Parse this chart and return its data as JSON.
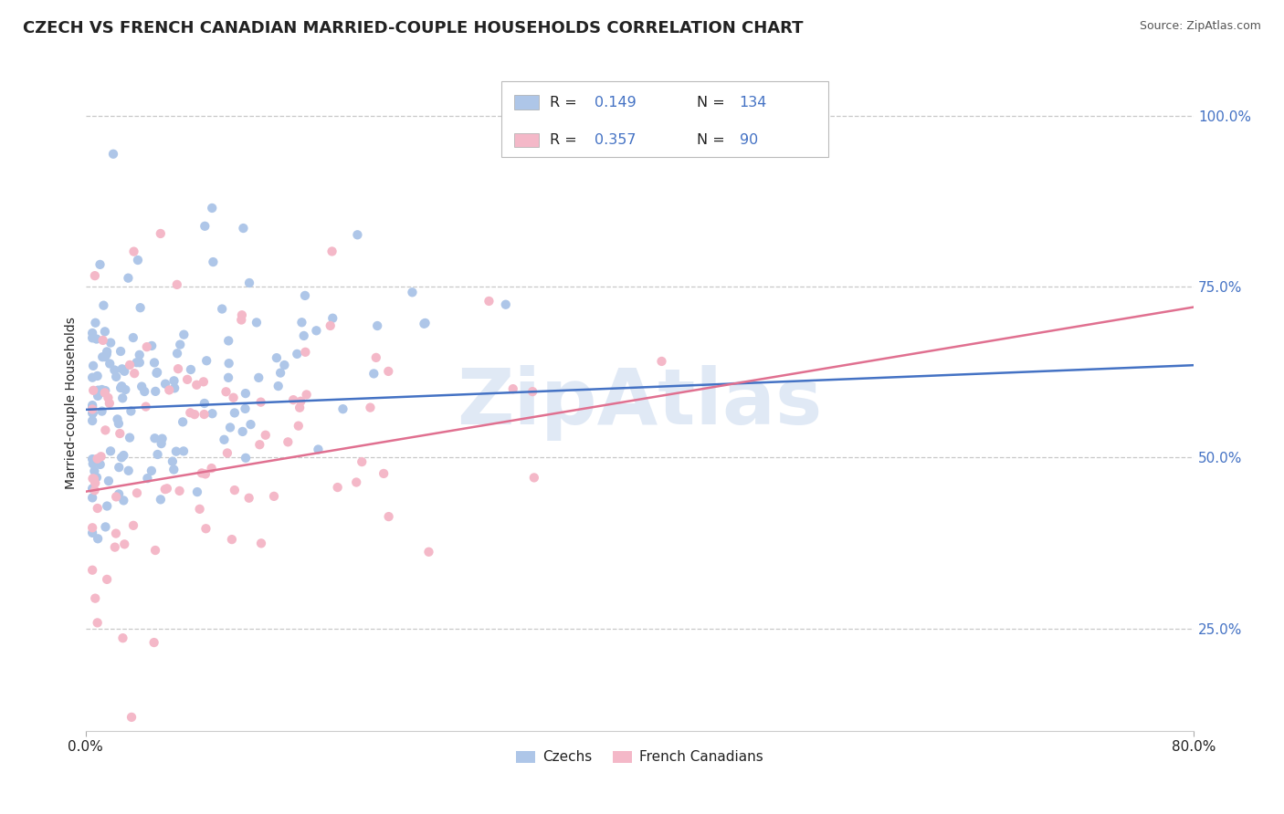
{
  "title": "CZECH VS FRENCH CANADIAN MARRIED-COUPLE HOUSEHOLDS CORRELATION CHART",
  "source_text": "Source: ZipAtlas.com",
  "ylabel": "Married-couple Households",
  "xlim": [
    0.0,
    0.8
  ],
  "ylim": [
    0.1,
    1.06
  ],
  "xticks": [
    0.0,
    0.8
  ],
  "xticklabels": [
    "0.0%",
    "80.0%"
  ],
  "yticks": [
    0.25,
    0.5,
    0.75,
    1.0
  ],
  "yticklabels": [
    "25.0%",
    "50.0%",
    "75.0%",
    "100.0%"
  ],
  "czech_color": "#aec6e8",
  "french_color": "#f4b8c8",
  "czech_line_color": "#4472c4",
  "french_line_color": "#e07090",
  "ytick_color": "#4472c4",
  "R_czech": 0.149,
  "N_czech": 134,
  "R_french": 0.357,
  "N_french": 90,
  "legend_labels": [
    "Czechs",
    "French Canadians"
  ],
  "watermark": "ZipAtlas",
  "background_color": "#ffffff",
  "grid_color": "#c8c8c8",
  "title_fontsize": 13,
  "axis_label_fontsize": 10,
  "tick_fontsize": 11,
  "blue_text_color": "#4472c4",
  "dark_text_color": "#222222",
  "source_color": "#555555",
  "czech_line_start_y": 0.57,
  "czech_line_end_y": 0.635,
  "french_line_start_y": 0.45,
  "french_line_end_y": 0.72
}
